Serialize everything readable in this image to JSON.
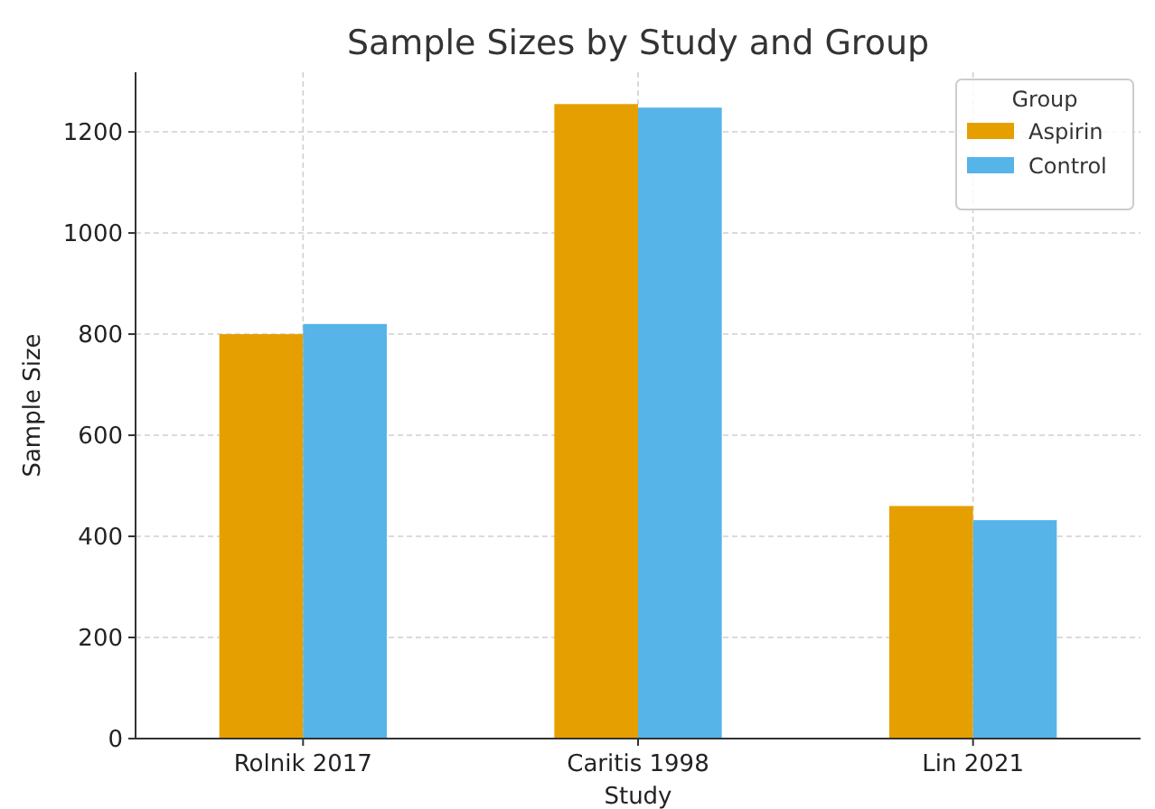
{
  "chart_data": {
    "type": "bar",
    "title": "Sample Sizes by Study and Group",
    "xlabel": "Study",
    "ylabel": "Sample Size",
    "legend_title": "Group",
    "categories": [
      "Rolnik 2017",
      "Caritis 1998",
      "Lin 2021"
    ],
    "series": [
      {
        "name": "Aspirin",
        "color": "#e69f00",
        "values": [
          800,
          1255,
          460
        ]
      },
      {
        "name": "Control",
        "color": "#56b4e9",
        "values": [
          820,
          1248,
          432
        ]
      }
    ],
    "ylim": [
      0,
      1318
    ],
    "yticks": [
      0,
      200,
      400,
      600,
      800,
      1000,
      1200
    ],
    "grid": true,
    "legend": "top right"
  }
}
